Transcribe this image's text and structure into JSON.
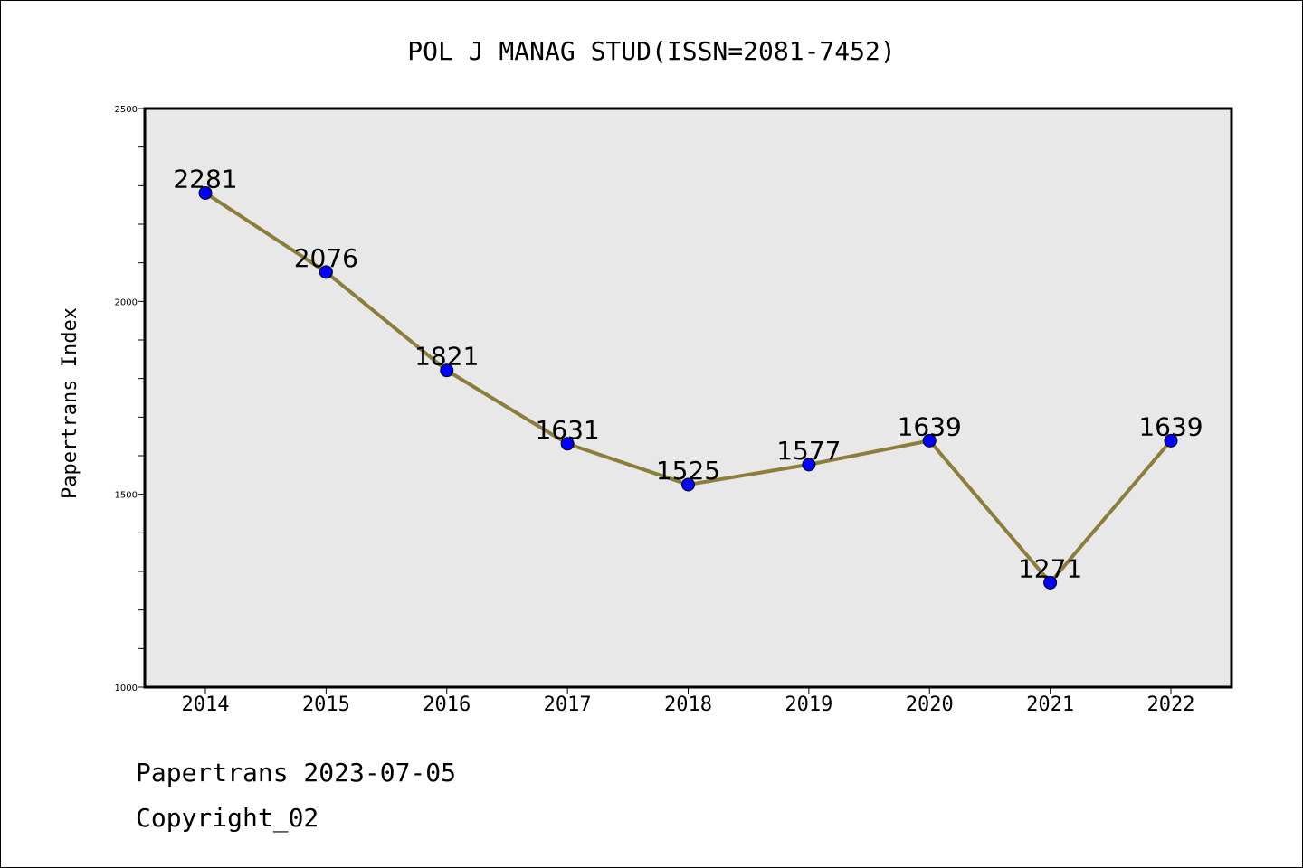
{
  "chart_data": {
    "type": "line",
    "title": "POL J MANAG STUD(ISSN=2081-7452)",
    "xlabel": "",
    "ylabel": "Papertrans Index",
    "categories": [
      "2014",
      "2015",
      "2016",
      "2017",
      "2018",
      "2019",
      "2020",
      "2021",
      "2022"
    ],
    "values": [
      2281,
      2076,
      1821,
      1631,
      1525,
      1577,
      1639,
      1271,
      1639
    ],
    "data_labels": [
      "2281",
      "2076",
      "1821",
      "1631",
      "1525",
      "1577",
      "1639",
      "1271",
      "1639"
    ],
    "ylim": [
      1000,
      2500
    ],
    "y_ticks": [
      1000,
      1500,
      2000,
      2500
    ],
    "y_tick_labels": [
      "1000",
      "1500",
      "2000",
      "2500"
    ],
    "y_minor_step": 100,
    "grid": false,
    "colors": {
      "line": "#8b7d3a",
      "marker": "#0000ff",
      "plot_bg": "#e8e8e8"
    }
  },
  "footer": {
    "source": "Papertrans 2023-07-05",
    "copyright": "Copyright_02"
  }
}
